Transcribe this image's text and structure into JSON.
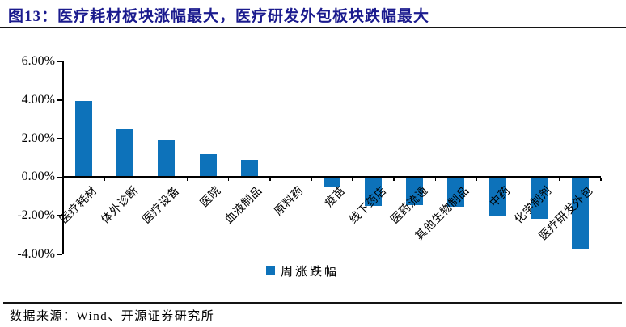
{
  "title": "图13：医疗耗材板块涨幅最大，医疗研发外包板块跌幅最大",
  "source_note": "数据来源：Wind、开源证券研究所",
  "chart_data": {
    "type": "bar",
    "title": "图13：医疗耗材板块涨幅最大，医疗研发外包板块跌幅最大",
    "categories": [
      "医疗耗材",
      "体外诊断",
      "医疗设备",
      "医院",
      "血液制品",
      "原料药",
      "疫苗",
      "线下药店",
      "医药流通",
      "其他生物制品",
      "中药",
      "化学制剂",
      "医疗研发外包"
    ],
    "values": [
      3.93,
      2.5,
      1.95,
      1.2,
      0.9,
      0,
      -0.5,
      -1.45,
      -1.4,
      -1.5,
      -1.95,
      -2.1,
      -3.65
    ],
    "value_unit": "percent",
    "xlabel": "",
    "ylabel": "",
    "ylim": [
      -4,
      6
    ],
    "ytick_labels": [
      "6.00%",
      "4.00%",
      "2.00%",
      "0.00%",
      "-2.00%",
      "-4.00%"
    ],
    "grid": false,
    "legend_label": "周涨跌幅",
    "legend_position": "bottom",
    "bar_color": "#0D72BA",
    "title_color": "#1b1b8e"
  }
}
